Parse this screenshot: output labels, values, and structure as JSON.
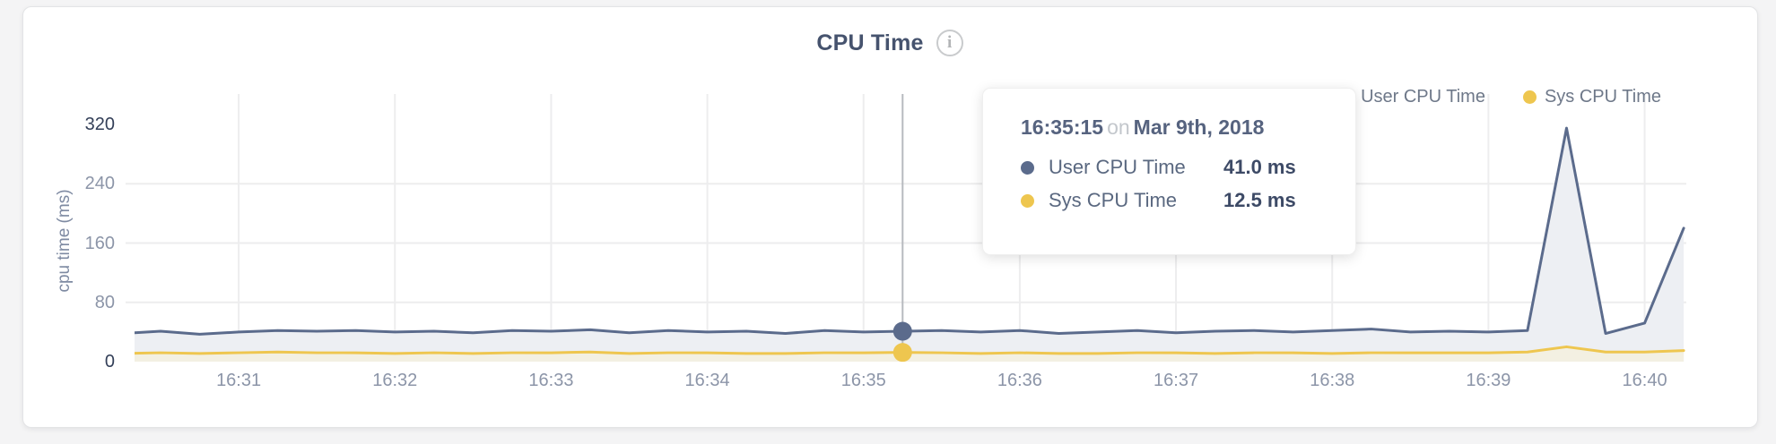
{
  "header": {
    "title": "CPU Time",
    "info_icon_glyph": "i"
  },
  "legend": {
    "items": [
      {
        "label": "User CPU Time",
        "color": "#5b6b8c"
      },
      {
        "label": "Sys CPU Time",
        "color": "#eec64f"
      }
    ]
  },
  "tooltip": {
    "time": "16:35:15",
    "connector": "on",
    "date": "Mar 9th, 2018",
    "rows": [
      {
        "label": "User CPU Time",
        "value": "41.0 ms",
        "color": "#5b6b8c"
      },
      {
        "label": "Sys CPU Time",
        "value": "12.5 ms",
        "color": "#eec64f"
      }
    ]
  },
  "colors": {
    "user_line": "#5b6b8c",
    "sys_line": "#eec64f",
    "user_fill": "#edeff3",
    "sys_fill": "#f3f0e2",
    "grid": "#ededee",
    "highlight_line": "#b7babf",
    "tick_dark": "#333f58",
    "tick_gray": "#8c95a8"
  },
  "chart_data": {
    "type": "area",
    "title": "CPU Time",
    "xlabel": "",
    "ylabel": "cpu time (ms)",
    "ylim": [
      0,
      360
    ],
    "y_ticks": [
      0,
      80,
      160,
      240,
      320
    ],
    "x_ticks": [
      "16:31",
      "16:32",
      "16:33",
      "16:34",
      "16:35",
      "16:36",
      "16:37",
      "16:38",
      "16:39",
      "16:40"
    ],
    "x_domain": [
      "16:30:20",
      "16:40:16"
    ],
    "grid": true,
    "legend_position": "top-right",
    "unit": "ms",
    "x": [
      "16:30:15",
      "16:30:30",
      "16:30:45",
      "16:31:00",
      "16:31:15",
      "16:31:30",
      "16:31:45",
      "16:32:00",
      "16:32:15",
      "16:32:30",
      "16:32:45",
      "16:33:00",
      "16:33:15",
      "16:33:30",
      "16:33:45",
      "16:34:00",
      "16:34:15",
      "16:34:30",
      "16:34:45",
      "16:35:00",
      "16:35:15",
      "16:35:30",
      "16:35:45",
      "16:36:00",
      "16:36:15",
      "16:36:30",
      "16:36:45",
      "16:37:00",
      "16:37:15",
      "16:37:30",
      "16:37:45",
      "16:38:00",
      "16:38:15",
      "16:38:30",
      "16:38:45",
      "16:39:00",
      "16:39:15",
      "16:39:30",
      "16:39:45",
      "16:40:00",
      "16:40:15"
    ],
    "series": [
      {
        "name": "User CPU Time",
        "color": "#5b6b8c",
        "values": [
          38,
          41,
          37,
          40,
          42,
          41,
          42,
          40,
          41,
          39,
          42,
          41,
          43,
          39,
          42,
          40,
          41,
          38,
          42,
          40,
          41,
          42,
          40,
          42,
          38,
          40,
          42,
          39,
          41,
          42,
          40,
          42,
          44,
          40,
          41,
          40,
          42,
          315,
          38,
          52,
          180
        ]
      },
      {
        "name": "Sys CPU Time",
        "color": "#eec64f",
        "values": [
          11,
          12,
          11,
          12,
          13,
          12,
          12,
          11,
          12,
          11,
          12,
          12,
          13,
          11,
          12,
          12,
          11,
          11,
          12,
          12,
          12.5,
          12,
          11,
          12,
          11,
          11,
          12,
          12,
          11,
          12,
          12,
          11,
          12,
          12,
          12,
          12,
          13,
          20,
          13,
          13,
          15
        ]
      }
    ],
    "highlight": {
      "x": "16:35:15",
      "values": {
        "User CPU Time": 41.0,
        "Sys CPU Time": 12.5
      }
    }
  }
}
